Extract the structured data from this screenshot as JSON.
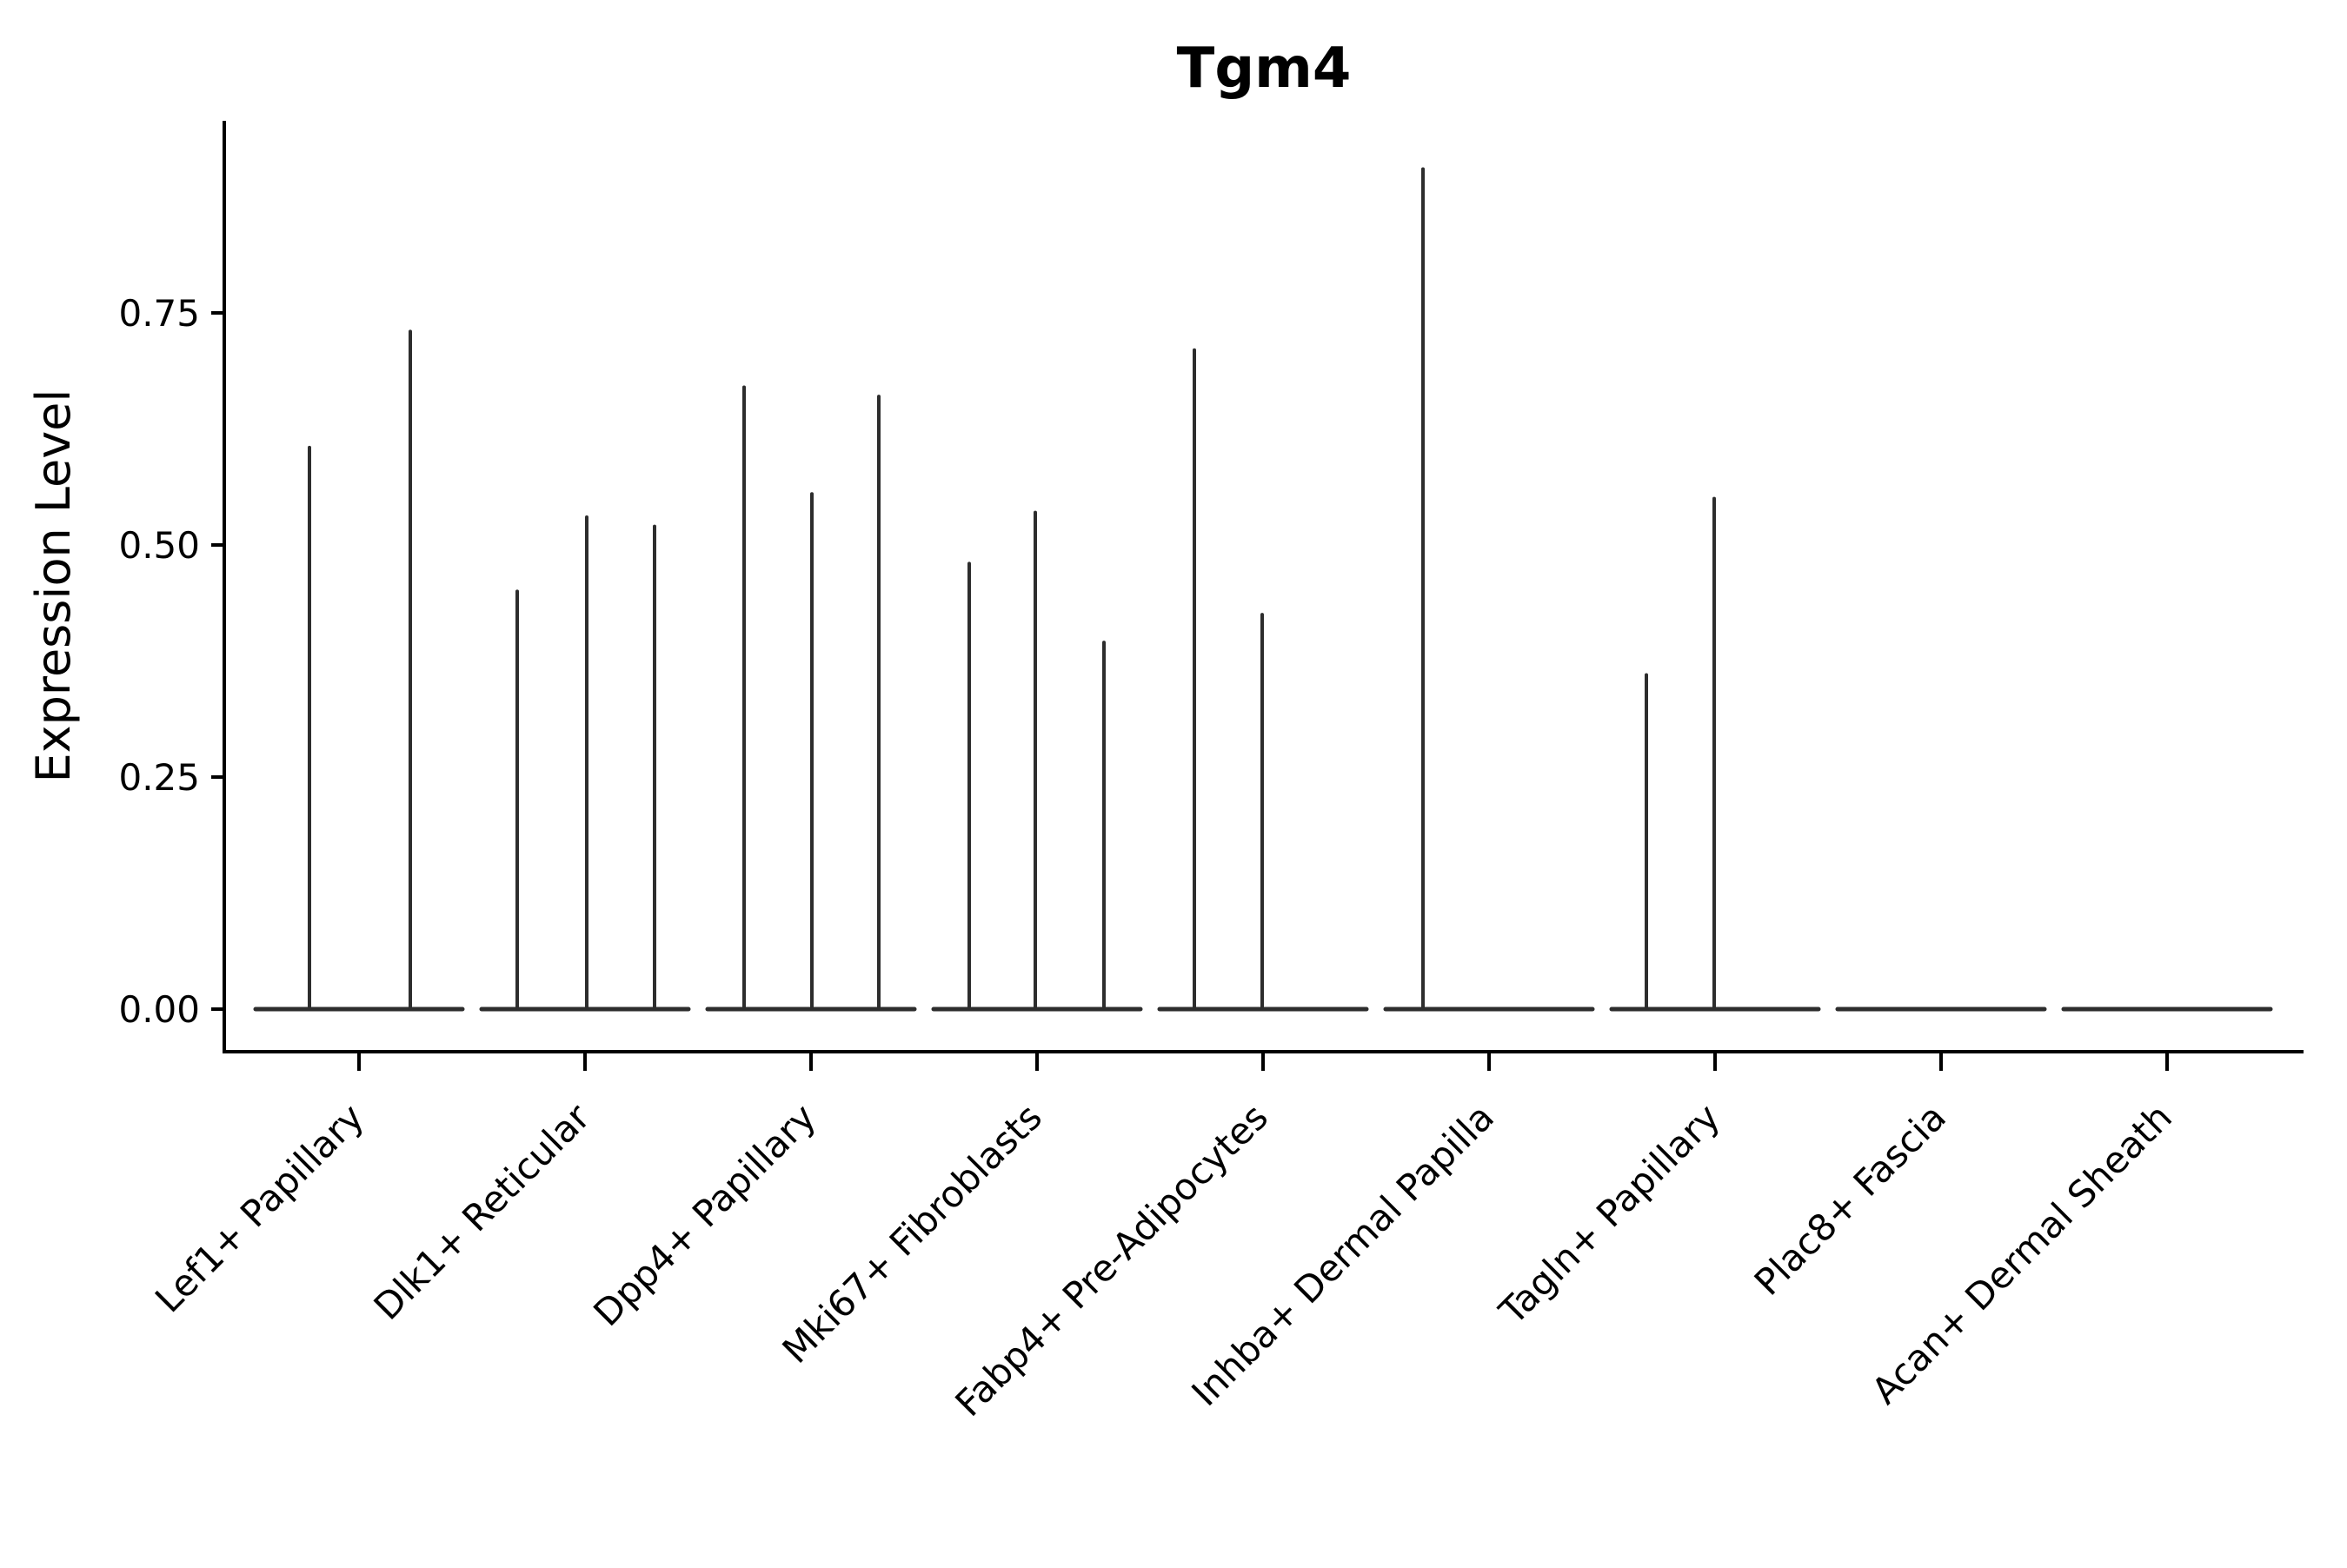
{
  "chart_data": {
    "type": "violin",
    "title": "Tgm4",
    "xlabel": "",
    "ylabel": "Expression Level",
    "grid": false,
    "legend": null,
    "ylim": [
      -0.045,
      0.957
    ],
    "ytick_values": [
      0.0,
      0.25,
      0.5,
      0.75
    ],
    "ytick_labels": [
      "0.00",
      "0.25",
      "0.50",
      "0.75"
    ],
    "categories": [
      "Lef1+ Papillary",
      "Dlk1+ Reticular",
      "Dpp4+ Papillary",
      "Mki67+ Fibroblasts",
      "Fabp4+ Pre-Adipocytes",
      "Inhba+ Dermal Papilla",
      "Tagln+ Papillary",
      "Plac8+ Fascia",
      "Acan+ Dermal Sheath"
    ],
    "groups": [
      {
        "category": "Lef1+ Papillary",
        "baseline_value": 0.0,
        "spikes": [
          {
            "offset": -57,
            "value": 0.605
          },
          {
            "offset": 59,
            "value": 0.73
          }
        ]
      },
      {
        "category": "Dlk1+ Reticular",
        "baseline_value": 0.0,
        "spikes": [
          {
            "offset": -78,
            "value": 0.45
          },
          {
            "offset": 2,
            "value": 0.53
          },
          {
            "offset": 80,
            "value": 0.52
          }
        ]
      },
      {
        "category": "Dpp4+ Papillary",
        "baseline_value": 0.0,
        "spikes": [
          {
            "offset": -77,
            "value": 0.67
          },
          {
            "offset": 1,
            "value": 0.555
          },
          {
            "offset": 78,
            "value": 0.66
          }
        ]
      },
      {
        "category": "Mki67+ Fibroblasts",
        "baseline_value": 0.0,
        "spikes": [
          {
            "offset": -78,
            "value": 0.48
          },
          {
            "offset": -2,
            "value": 0.535
          },
          {
            "offset": 77,
            "value": 0.395
          }
        ]
      },
      {
        "category": "Fabp4+ Pre-Adipocytes",
        "baseline_value": 0.0,
        "spikes": [
          {
            "offset": -79,
            "value": 0.71
          },
          {
            "offset": -1,
            "value": 0.425
          }
        ]
      },
      {
        "category": "Inhba+ Dermal Papilla",
        "baseline_value": 0.0,
        "spikes": [
          {
            "offset": -76,
            "value": 0.905
          }
        ]
      },
      {
        "category": "Tagln+ Papillary",
        "baseline_value": 0.0,
        "spikes": [
          {
            "offset": -79,
            "value": 0.36
          },
          {
            "offset": -1,
            "value": 0.55
          }
        ]
      },
      {
        "category": "Plac8+ Fascia",
        "baseline_value": 0.0,
        "spikes": []
      },
      {
        "category": "Acan+ Dermal Sheath",
        "baseline_value": 0.0,
        "spikes": []
      }
    ]
  },
  "colors": {
    "violin_stroke": "#2d2d2d",
    "axis": "#000000",
    "text": "#000000",
    "background": "#ffffff"
  }
}
